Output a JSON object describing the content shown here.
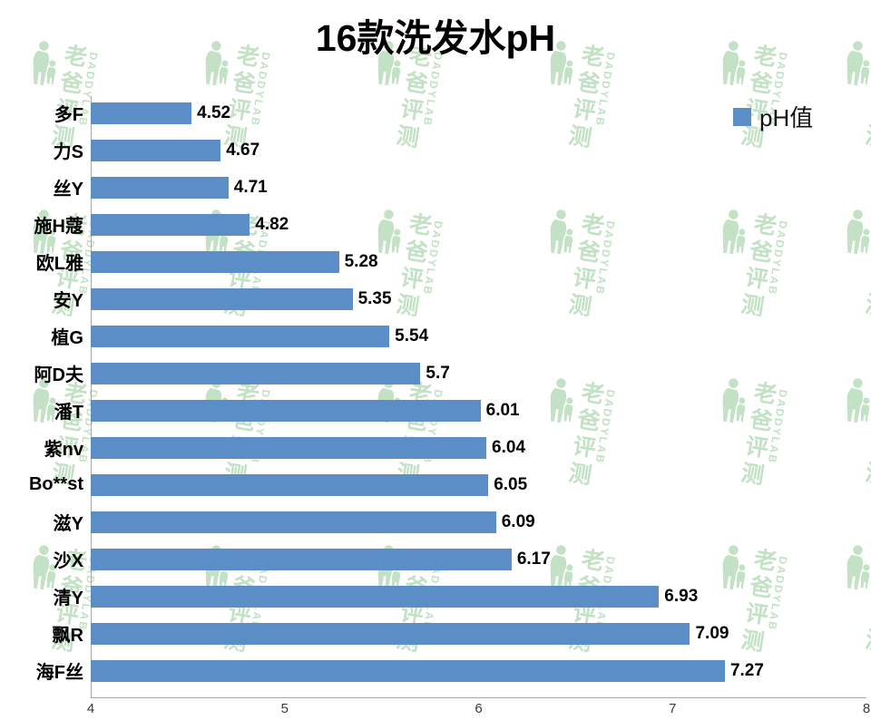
{
  "title": "16款洗发水pH",
  "legend": {
    "label": "pH值",
    "color": "#5b8ec6"
  },
  "watermark": {
    "cn": "老爸评测",
    "en": "DADDYLAB"
  },
  "chart_data": {
    "type": "bar",
    "orientation": "horizontal",
    "title": "16款洗发水pH",
    "legend_entries": [
      "pH值"
    ],
    "legend_position": "top-right",
    "grid": false,
    "bar_color": "#5b8ec6",
    "xlabel": "",
    "ylabel": "",
    "xlim": [
      4,
      8
    ],
    "xticks": [
      4,
      5,
      6,
      7,
      8
    ],
    "categories": [
      "多F",
      "力S",
      "丝Y",
      "施H蔻",
      "欧L雅",
      "安Y",
      "植G",
      "阿D夫",
      "潘T",
      "紫nv",
      "Bo**st",
      "滋Y",
      "沙X",
      "清Y",
      "飘R",
      "海F丝"
    ],
    "values": [
      4.52,
      4.67,
      4.71,
      4.82,
      5.28,
      5.35,
      5.54,
      5.7,
      6.01,
      6.04,
      6.05,
      6.09,
      6.17,
      6.93,
      7.09,
      7.27
    ]
  }
}
